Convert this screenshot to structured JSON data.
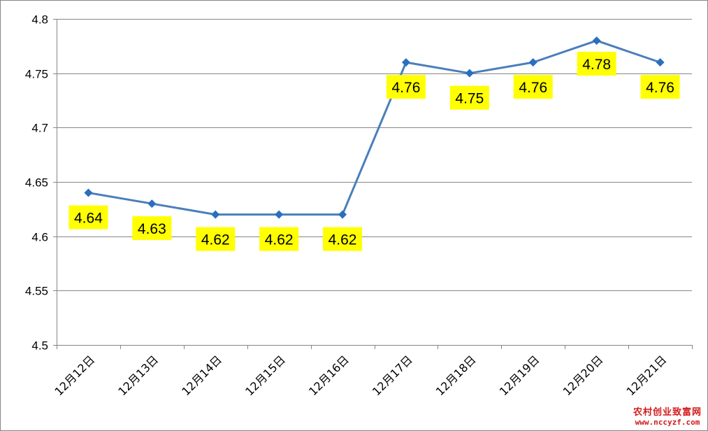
{
  "chart_data": {
    "type": "line",
    "title": "",
    "xlabel": "",
    "ylabel": "",
    "categories": [
      "12月12日",
      "12月13日",
      "12月14日",
      "12月15日",
      "12月16日",
      "12月17日",
      "12月18日",
      "12月19日",
      "12月20日",
      "12月21日"
    ],
    "series": [
      {
        "values": [
          4.64,
          4.63,
          4.62,
          4.62,
          4.62,
          4.76,
          4.75,
          4.76,
          4.78,
          4.76
        ],
        "labels": [
          "4.64",
          "4.63",
          "4.62",
          "4.62",
          "4.62",
          "4.76",
          "4.75",
          "4.76",
          "4.78",
          "4.76"
        ],
        "color": "#4a7ebb",
        "marker": "diamond",
        "marker_color": "#2a6ebf"
      }
    ],
    "ylim": [
      4.5,
      4.8
    ],
    "yticks": [
      "4.5",
      "4.55",
      "4.6",
      "4.65",
      "4.7",
      "4.75",
      "4.8"
    ],
    "ytick_values": [
      4.5,
      4.55,
      4.6,
      4.65,
      4.7,
      4.75,
      4.8
    ],
    "grid": true,
    "legend": "none",
    "data_label_background": "#ffff00",
    "gridline_color": "#868686"
  },
  "watermark": {
    "line1": "农村创业致富网",
    "line2": "www.nccyzf.com",
    "color": "#d21a1a"
  }
}
